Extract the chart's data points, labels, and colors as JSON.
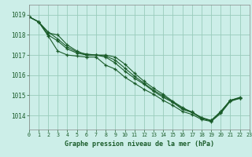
{
  "title": "Graphe pression niveau de la mer (hPa)",
  "background_color": "#cceee8",
  "plot_bg_color": "#cceee8",
  "grid_color": "#99ccbb",
  "line_color": "#1a5c2a",
  "xlim": [
    0,
    23
  ],
  "ylim": [
    1013.3,
    1019.5
  ],
  "yticks": [
    1014,
    1015,
    1016,
    1017,
    1018,
    1019
  ],
  "xticks": [
    0,
    1,
    2,
    3,
    4,
    5,
    6,
    7,
    8,
    9,
    10,
    11,
    12,
    13,
    14,
    15,
    16,
    17,
    18,
    19,
    20,
    21,
    22,
    23
  ],
  "lines": [
    [
      1018.9,
      1018.65,
      1018.1,
      1018.0,
      1017.5,
      1017.2,
      1017.0,
      1017.0,
      1016.9,
      1016.6,
      1016.2,
      1015.85,
      1015.55,
      1015.2,
      1014.9,
      1014.65,
      1014.3,
      1014.15,
      1013.85,
      1013.75,
      1014.15,
      1014.75,
      1014.85
    ],
    [
      1018.9,
      1018.65,
      1018.0,
      1017.7,
      1017.3,
      1017.1,
      1017.0,
      1017.0,
      1017.0,
      1016.9,
      1016.55,
      1016.1,
      1015.7,
      1015.35,
      1015.05,
      1014.7,
      1014.4,
      1014.15,
      1013.9,
      1013.75,
      1014.2,
      1014.75,
      1014.9
    ],
    [
      1018.9,
      1018.65,
      1018.15,
      1017.8,
      1017.4,
      1017.15,
      1017.05,
      1017.0,
      1016.95,
      1016.75,
      1016.35,
      1015.95,
      1015.6,
      1015.25,
      1014.97,
      1014.68,
      1014.35,
      1014.18,
      1013.88,
      1013.72,
      1014.18,
      1014.75,
      1014.87
    ],
    [
      1018.9,
      1018.65,
      1017.95,
      1017.2,
      1017.0,
      1016.95,
      1016.9,
      1016.9,
      1016.5,
      1016.3,
      1015.9,
      1015.6,
      1015.3,
      1015.05,
      1014.75,
      1014.5,
      1014.2,
      1014.05,
      1013.8,
      1013.7,
      1014.1,
      1014.7,
      1014.85
    ]
  ]
}
